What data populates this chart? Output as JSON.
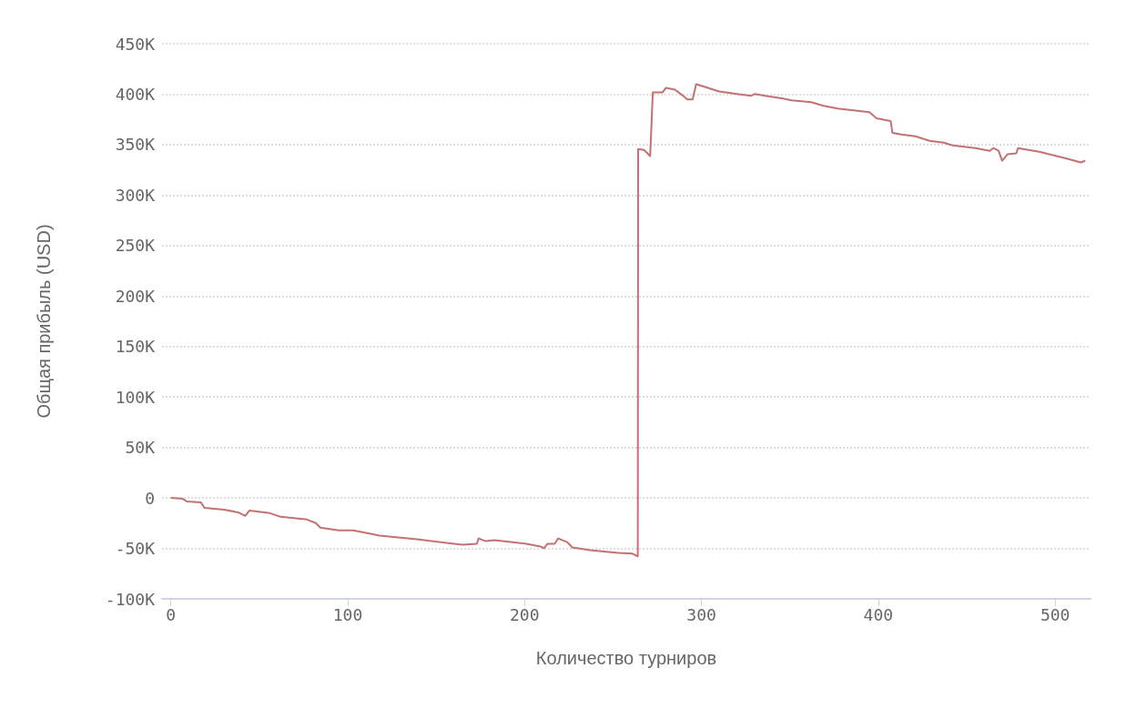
{
  "chart_data": {
    "type": "line",
    "xlabel": "Количество турниров",
    "ylabel": "Общая прибыль (USD)",
    "xlim": [
      -5,
      520
    ],
    "xticks": [
      0,
      100,
      200,
      300,
      400,
      500
    ],
    "ylim": [
      -100000,
      450000
    ],
    "yticks": [
      {
        "value": -100000,
        "label": "-100K"
      },
      {
        "value": -50000,
        "label": "-50K"
      },
      0,
      {
        "value": 50000,
        "label": "50K"
      },
      {
        "value": 100000,
        "label": "100K"
      },
      {
        "value": 150000,
        "label": "150K"
      },
      {
        "value": 200000,
        "label": "200K"
      },
      {
        "value": 250000,
        "label": "250K"
      },
      {
        "value": 300000,
        "label": "300K"
      },
      {
        "value": 350000,
        "label": "350K"
      },
      {
        "value": 400000,
        "label": "400K"
      },
      {
        "value": 450000,
        "label": "450K"
      }
    ],
    "grid": "y",
    "marker": "none",
    "line_style": "solid",
    "series": [
      {
        "color": "#c47171",
        "x": [
          0,
          6.7,
          9.3,
          17,
          19,
          30,
          38,
          42,
          44.5,
          56,
          62,
          77,
          82,
          84.5,
          95,
          103,
          113,
          118,
          139,
          160,
          165,
          173,
          174,
          178,
          183,
          201,
          209,
          211,
          213,
          217,
          219,
          224,
          227,
          237,
          253,
          261,
          264,
          264.2,
          267.5,
          271,
          272.5,
          278,
          280,
          285,
          289,
          292,
          295,
          297,
          302,
          310,
          320,
          328,
          330,
          336,
          346,
          351,
          362,
          369,
          377,
          395,
          399,
          407,
          408,
          413,
          421,
          429,
          437,
          442,
          455,
          463,
          465,
          468,
          470,
          473,
          478,
          479,
          491,
          507,
          514.5,
          517
        ],
        "values": [
          0,
          -900,
          -3600,
          -4500,
          -9800,
          -11600,
          -14300,
          -17800,
          -12500,
          -15100,
          -18700,
          -21400,
          -24900,
          -29400,
          -32100,
          -32100,
          -35600,
          -37400,
          -41000,
          -45400,
          -46300,
          -45400,
          -40100,
          -42800,
          -41900,
          -45400,
          -48100,
          -49900,
          -45400,
          -45400,
          -40100,
          -43700,
          -49000,
          -51700,
          -54400,
          -55200,
          -57900,
          345700,
          344800,
          338600,
          401800,
          401800,
          406300,
          404500,
          399200,
          394700,
          394700,
          409900,
          407200,
          402700,
          400100,
          398300,
          400100,
          398300,
          395600,
          393900,
          392100,
          388500,
          385800,
          382200,
          376000,
          373300,
          361700,
          360000,
          358200,
          353700,
          351900,
          349300,
          346600,
          343900,
          346600,
          343900,
          334100,
          340400,
          341300,
          346600,
          343000,
          335900,
          332300,
          334100
        ]
      }
    ]
  }
}
